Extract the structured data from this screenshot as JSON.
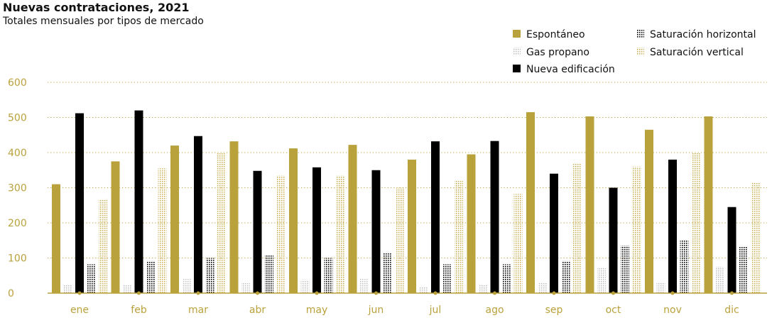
{
  "title": "Nuevas contrataciones, 2021",
  "subtitle": "Totales mensuales por tipos de mercado",
  "colors": {
    "espontaneo": "#b9a13c",
    "nueva": "#000000",
    "axis": "#b9a13c",
    "grid": "#b9a13c"
  },
  "chart_data": {
    "type": "bar",
    "title": "Nuevas contrataciones, 2021",
    "subtitle": "Totales mensuales por tipos de mercado",
    "categories": [
      "ene",
      "feb",
      "mar",
      "abr",
      "may",
      "jun",
      "jul",
      "ago",
      "sep",
      "oct",
      "nov",
      "dic"
    ],
    "ylim": [
      0,
      600
    ],
    "yticks": [
      0,
      100,
      200,
      300,
      400,
      500,
      600
    ],
    "grid": true,
    "legend_position": "top-right",
    "series": [
      {
        "name": "Espontáneo",
        "pattern": "solid-gold",
        "values": [
          310,
          375,
          420,
          432,
          412,
          422,
          380,
          395,
          515,
          503,
          465,
          503
        ]
      },
      {
        "name": "Gas propano",
        "pattern": "dotted-light",
        "values": [
          25,
          25,
          40,
          30,
          38,
          40,
          18,
          25,
          30,
          72,
          30,
          75
        ]
      },
      {
        "name": "Nueva edificación",
        "pattern": "solid-black",
        "values": [
          512,
          520,
          447,
          348,
          358,
          350,
          432,
          433,
          340,
          300,
          380,
          245
        ]
      },
      {
        "name": "Saturación horizontal",
        "pattern": "dotted-dark",
        "values": [
          82,
          92,
          100,
          108,
          100,
          116,
          82,
          82,
          92,
          135,
          150,
          132
        ]
      },
      {
        "name": "Saturación vertical",
        "pattern": "dotted-gold",
        "values": [
          265,
          355,
          400,
          335,
          335,
          300,
          322,
          282,
          368,
          360,
          400,
          315
        ]
      }
    ]
  }
}
